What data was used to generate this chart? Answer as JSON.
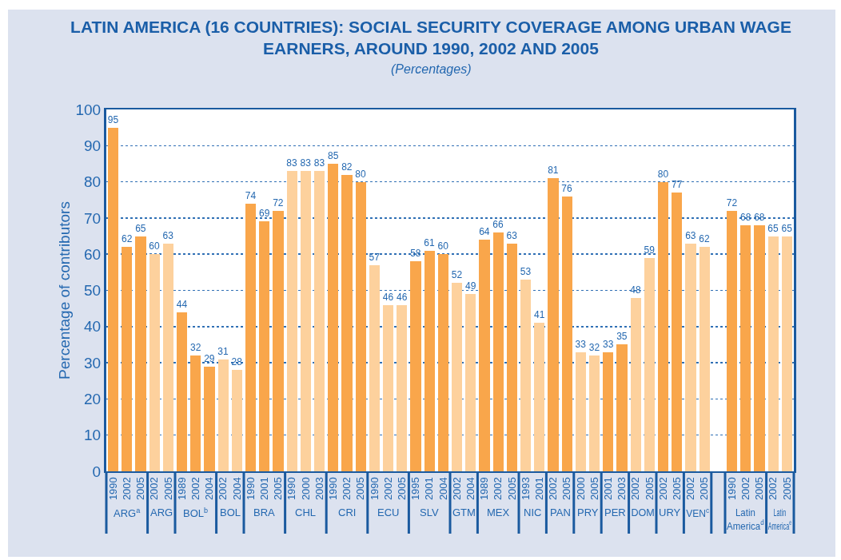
{
  "chart_data": {
    "type": "bar",
    "title": "LATIN AMERICA (16 COUNTRIES): SOCIAL SECURITY COVERAGE AMONG URBAN WAGE EARNERS, AROUND 1990, 2002 AND 2005",
    "subtitle": "(Percentages)",
    "ylabel": "Percentage of contributors",
    "categories": [
      "1990",
      "2002",
      "2005",
      "2002",
      "2005",
      "1989",
      "2002",
      "2004",
      "2002",
      "2004",
      "1990",
      "2001",
      "2005",
      "1990",
      "2000",
      "2003",
      "1990",
      "2002",
      "2005",
      "1990",
      "2002",
      "2005",
      "1995",
      "2001",
      "2004",
      "2002",
      "2004",
      "1989",
      "2002",
      "2005",
      "1993",
      "2001",
      "2002",
      "2005",
      "2000",
      "2005",
      "2001",
      "2003",
      "2002",
      "2005",
      "2002",
      "2005",
      "2002",
      "2005",
      null,
      "1990",
      "2002",
      "2005",
      "2002",
      "2005"
    ],
    "series": [
      {
        "color": "#f9a64b",
        "values": [
          95,
          62,
          65,
          null,
          null,
          null,
          null,
          null,
          null,
          null,
          null,
          null,
          null,
          null,
          null,
          null,
          null,
          null,
          null,
          null,
          null,
          null,
          null,
          null,
          null,
          null,
          null,
          null,
          null,
          null,
          null,
          null,
          null,
          null,
          null,
          null,
          null,
          null,
          null,
          null,
          null,
          null,
          null,
          null,
          null,
          null,
          null,
          null,
          null,
          null
        ]
      },
      {
        "color": "#fdd19d",
        "values": [
          null,
          null,
          null,
          60,
          63,
          null,
          null,
          null,
          null,
          null,
          null,
          null,
          null,
          null,
          null,
          null,
          null,
          null,
          null,
          null,
          null,
          null,
          null,
          null,
          null,
          null,
          null,
          null,
          null,
          null,
          null,
          null,
          null,
          null,
          null,
          null,
          null,
          null,
          null,
          null,
          null,
          null,
          null,
          null,
          null,
          null,
          null,
          null,
          null,
          null
        ]
      },
      {
        "color": "#f9a64b",
        "values": [
          null,
          null,
          null,
          null,
          null,
          44,
          32,
          29,
          null,
          null,
          null,
          null,
          null,
          null,
          null,
          null,
          null,
          null,
          null,
          null,
          null,
          null,
          null,
          null,
          null,
          null,
          null,
          null,
          null,
          null,
          null,
          null,
          null,
          null,
          null,
          null,
          null,
          null,
          null,
          null,
          null,
          null,
          null,
          null,
          null,
          null,
          null,
          null,
          null,
          null
        ]
      },
      {
        "color": "#fdd19d",
        "values": [
          null,
          null,
          null,
          null,
          null,
          null,
          null,
          null,
          31,
          28,
          null,
          null,
          null,
          null,
          null,
          null,
          null,
          null,
          null,
          null,
          null,
          null,
          null,
          null,
          null,
          null,
          null,
          null,
          null,
          null,
          null,
          null,
          null,
          null,
          null,
          null,
          null,
          null,
          null,
          null,
          null,
          null,
          null,
          null,
          null,
          null,
          null,
          null,
          null,
          null
        ]
      },
      {
        "color": "#f9a64b",
        "values": [
          null,
          null,
          null,
          null,
          null,
          null,
          null,
          null,
          null,
          null,
          74,
          69,
          72,
          null,
          null,
          null,
          null,
          null,
          null,
          null,
          null,
          null,
          null,
          null,
          null,
          null,
          null,
          null,
          null,
          null,
          null,
          null,
          null,
          null,
          null,
          null,
          null,
          null,
          null,
          null,
          null,
          null,
          null,
          null,
          null,
          null,
          null,
          null,
          null,
          null
        ]
      },
      {
        "color": "#fdd19d",
        "values": [
          null,
          null,
          null,
          null,
          null,
          null,
          null,
          null,
          null,
          null,
          null,
          null,
          null,
          83,
          83,
          83,
          null,
          null,
          null,
          null,
          null,
          null,
          null,
          null,
          null,
          null,
          null,
          null,
          null,
          null,
          null,
          null,
          null,
          null,
          null,
          null,
          null,
          null,
          null,
          null,
          null,
          null,
          null,
          null,
          null,
          null,
          null,
          null,
          null,
          null
        ]
      },
      {
        "color": "#f9a64b",
        "values": [
          null,
          null,
          null,
          null,
          null,
          null,
          null,
          null,
          null,
          null,
          null,
          null,
          null,
          null,
          null,
          null,
          85,
          82,
          80,
          null,
          null,
          null,
          null,
          null,
          null,
          null,
          null,
          null,
          null,
          null,
          null,
          null,
          null,
          null,
          null,
          null,
          null,
          null,
          null,
          null,
          null,
          null,
          null,
          null,
          null,
          null,
          null,
          null,
          null,
          null
        ]
      },
      {
        "color": "#fdd19d",
        "values": [
          null,
          null,
          null,
          null,
          null,
          null,
          null,
          null,
          null,
          null,
          null,
          null,
          null,
          null,
          null,
          null,
          null,
          null,
          null,
          57,
          46,
          46,
          null,
          null,
          null,
          null,
          null,
          null,
          null,
          null,
          null,
          null,
          null,
          null,
          null,
          null,
          null,
          null,
          null,
          null,
          null,
          null,
          null,
          null,
          null,
          null,
          null,
          null,
          null,
          null
        ]
      },
      {
        "color": "#f9a64b",
        "values": [
          null,
          null,
          null,
          null,
          null,
          null,
          null,
          null,
          null,
          null,
          null,
          null,
          null,
          null,
          null,
          null,
          null,
          null,
          null,
          null,
          null,
          null,
          58,
          61,
          60,
          null,
          null,
          null,
          null,
          null,
          null,
          null,
          null,
          null,
          null,
          null,
          null,
          null,
          null,
          null,
          null,
          null,
          null,
          null,
          null,
          null,
          null,
          null,
          null,
          null
        ]
      },
      {
        "color": "#fdd19d",
        "values": [
          null,
          null,
          null,
          null,
          null,
          null,
          null,
          null,
          null,
          null,
          null,
          null,
          null,
          null,
          null,
          null,
          null,
          null,
          null,
          null,
          null,
          null,
          null,
          null,
          null,
          52,
          49,
          null,
          null,
          null,
          null,
          null,
          null,
          null,
          null,
          null,
          null,
          null,
          null,
          null,
          null,
          null,
          null,
          null,
          null,
          null,
          null,
          null,
          null,
          null
        ]
      },
      {
        "color": "#f9a64b",
        "values": [
          null,
          null,
          null,
          null,
          null,
          null,
          null,
          null,
          null,
          null,
          null,
          null,
          null,
          null,
          null,
          null,
          null,
          null,
          null,
          null,
          null,
          null,
          null,
          null,
          null,
          null,
          null,
          64,
          66,
          63,
          null,
          null,
          null,
          null,
          null,
          null,
          null,
          null,
          null,
          null,
          null,
          null,
          null,
          null,
          null,
          null,
          null,
          null,
          null,
          null
        ]
      },
      {
        "color": "#fdd19d",
        "values": [
          null,
          null,
          null,
          null,
          null,
          null,
          null,
          null,
          null,
          null,
          null,
          null,
          null,
          null,
          null,
          null,
          null,
          null,
          null,
          null,
          null,
          null,
          null,
          null,
          null,
          null,
          null,
          null,
          null,
          null,
          53,
          41,
          null,
          null,
          null,
          null,
          null,
          null,
          null,
          null,
          null,
          null,
          null,
          null,
          null,
          null,
          null,
          null,
          null,
          null
        ]
      },
      {
        "color": "#f9a64b",
        "values": [
          null,
          null,
          null,
          null,
          null,
          null,
          null,
          null,
          null,
          null,
          null,
          null,
          null,
          null,
          null,
          null,
          null,
          null,
          null,
          null,
          null,
          null,
          null,
          null,
          null,
          null,
          null,
          null,
          null,
          null,
          null,
          null,
          81,
          76,
          null,
          null,
          null,
          null,
          null,
          null,
          null,
          null,
          null,
          null,
          null,
          null,
          null,
          null,
          null,
          null
        ]
      },
      {
        "color": "#fdd19d",
        "values": [
          null,
          null,
          null,
          null,
          null,
          null,
          null,
          null,
          null,
          null,
          null,
          null,
          null,
          null,
          null,
          null,
          null,
          null,
          null,
          null,
          null,
          null,
          null,
          null,
          null,
          null,
          null,
          null,
          null,
          null,
          null,
          null,
          null,
          null,
          33,
          32,
          null,
          null,
          null,
          null,
          null,
          null,
          null,
          null,
          null,
          null,
          null,
          null,
          null,
          null
        ]
      },
      {
        "color": "#f9a64b",
        "values": [
          null,
          null,
          null,
          null,
          null,
          null,
          null,
          null,
          null,
          null,
          null,
          null,
          null,
          null,
          null,
          null,
          null,
          null,
          null,
          null,
          null,
          null,
          null,
          null,
          null,
          null,
          null,
          null,
          null,
          null,
          null,
          null,
          null,
          null,
          null,
          null,
          33,
          35,
          null,
          null,
          null,
          null,
          null,
          null,
          null,
          null,
          null,
          null,
          null,
          null
        ]
      },
      {
        "color": "#fdd19d",
        "values": [
          null,
          null,
          null,
          null,
          null,
          null,
          null,
          null,
          null,
          null,
          null,
          null,
          null,
          null,
          null,
          null,
          null,
          null,
          null,
          null,
          null,
          null,
          null,
          null,
          null,
          null,
          null,
          null,
          null,
          null,
          null,
          null,
          null,
          null,
          null,
          null,
          null,
          null,
          48,
          59,
          null,
          null,
          null,
          null,
          null,
          null,
          null,
          null,
          null,
          null
        ]
      },
      {
        "color": "#f9a64b",
        "values": [
          null,
          null,
          null,
          null,
          null,
          null,
          null,
          null,
          null,
          null,
          null,
          null,
          null,
          null,
          null,
          null,
          null,
          null,
          null,
          null,
          null,
          null,
          null,
          null,
          null,
          null,
          null,
          null,
          null,
          null,
          null,
          null,
          null,
          null,
          null,
          null,
          null,
          null,
          null,
          null,
          80,
          77,
          null,
          null,
          null,
          null,
          null,
          null,
          null,
          null
        ]
      },
      {
        "color": "#fdd19d",
        "values": [
          null,
          null,
          null,
          null,
          null,
          null,
          null,
          null,
          null,
          null,
          null,
          null,
          null,
          null,
          null,
          null,
          null,
          null,
          null,
          null,
          null,
          null,
          null,
          null,
          null,
          null,
          null,
          null,
          null,
          null,
          null,
          null,
          null,
          null,
          null,
          null,
          null,
          null,
          null,
          null,
          null,
          null,
          63,
          62,
          null,
          null,
          null,
          null,
          null,
          null
        ]
      },
      {
        "color": "#f9a64b",
        "values": [
          null,
          null,
          null,
          null,
          null,
          null,
          null,
          null,
          null,
          null,
          null,
          null,
          null,
          null,
          null,
          null,
          null,
          null,
          null,
          null,
          null,
          null,
          null,
          null,
          null,
          null,
          null,
          null,
          null,
          null,
          null,
          null,
          null,
          null,
          null,
          null,
          null,
          null,
          null,
          null,
          null,
          null,
          null,
          null,
          null,
          72,
          68,
          68,
          null,
          null
        ]
      },
      {
        "color": "#fdd19d",
        "values": [
          null,
          null,
          null,
          null,
          null,
          null,
          null,
          null,
          null,
          null,
          null,
          null,
          null,
          null,
          null,
          null,
          null,
          null,
          null,
          null,
          null,
          null,
          null,
          null,
          null,
          null,
          null,
          null,
          null,
          null,
          null,
          null,
          null,
          null,
          null,
          null,
          null,
          null,
          null,
          null,
          null,
          null,
          null,
          null,
          null,
          null,
          null,
          null,
          65,
          65
        ]
      }
    ],
    "annotations": [
      "ARG$^{a}$",
      "ARG",
      "BOL$^{b}$",
      "BOL",
      "BRA",
      "CHL",
      "CRI",
      "ECU",
      "SLV",
      "GTM",
      "MEX",
      "NIC",
      "PAN",
      "PRY",
      "PER",
      "DOM",
      "URY",
      "VEN$^{c}$",
      "Latin America$^{d}$",
      "Latin America$^{e}$"
    ],
    "ylim": [
      0,
      100
    ],
    "yticks": [
      0,
      10,
      20,
      30,
      40,
      50,
      60,
      70,
      80,
      90,
      100
    ],
    "grid": "y",
    "data_labels": true
  }
}
